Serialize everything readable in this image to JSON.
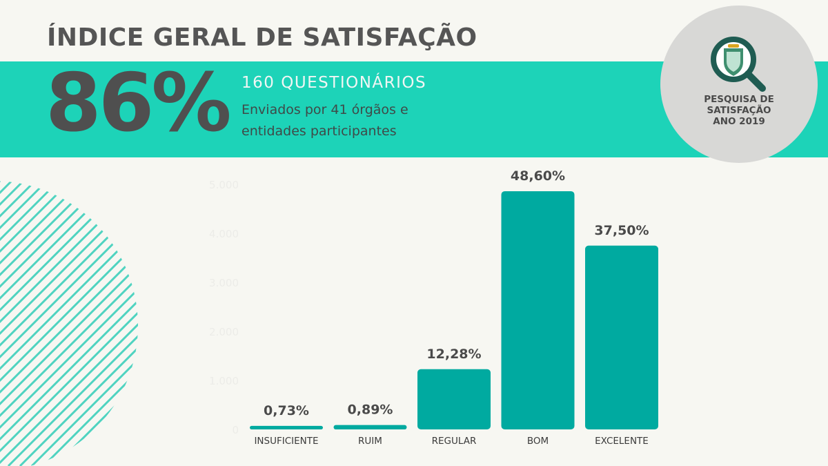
{
  "header": {
    "title": "ÍNDICE GERAL DE SATISFAÇÃO",
    "big_value": "86%",
    "questionnaires": "160 QUESTIONÁRIOS",
    "description": "Enviados por 41 órgãos e entidades participantes"
  },
  "badge": {
    "line1": "PESQUISA DE",
    "line2": "SATISFAÇÃO",
    "line3": "ANO 2019",
    "icon": "magnifier-shield-icon"
  },
  "colors": {
    "band": "#1dd3b8",
    "bar": "#00aaa0",
    "title": "#555555",
    "badge_bg": "#d8d8d6",
    "stripes": "#4fd3c0"
  },
  "chart_data": {
    "type": "bar",
    "categories": [
      "INSUFICIENTE",
      "RUIM",
      "REGULAR",
      "BOM",
      "EXCELENTE"
    ],
    "values": [
      73,
      89,
      1228,
      4860,
      3750
    ],
    "data_labels": [
      "0,73%",
      "0,89%",
      "12,28%",
      "48,60%",
      "37,50%"
    ],
    "y_ticks": [
      0,
      1000,
      2000,
      3000,
      4000,
      5000
    ],
    "y_tick_labels": [
      "0",
      "1.000",
      "2.000",
      "3.000",
      "4.000",
      "5.000"
    ],
    "ylim": [
      0,
      5000
    ],
    "grid": false,
    "legend": "none"
  }
}
